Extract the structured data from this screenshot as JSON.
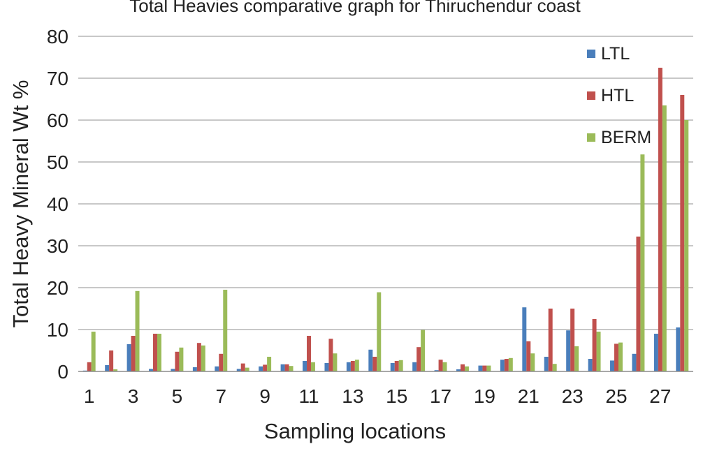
{
  "chart_data": {
    "type": "bar",
    "title": "Total Heavies  comparative graph for Thiruchendur coast",
    "xlabel": "Sampling locations",
    "ylabel": "Total Heavy Mineral Wt %",
    "ylim": [
      0,
      80
    ],
    "yticks": [
      "0",
      "10",
      "20",
      "30",
      "40",
      "50",
      "60",
      "70",
      "80"
    ],
    "categories": [
      "1",
      "2",
      "3",
      "4",
      "5",
      "6",
      "7",
      "8",
      "9",
      "10",
      "11",
      "12",
      "13",
      "14",
      "15",
      "16",
      "17",
      "18",
      "19",
      "20",
      "21",
      "22",
      "23",
      "24",
      "25",
      "26",
      "27",
      "28"
    ],
    "xtick_labels": [
      "1",
      "",
      "3",
      "",
      "5",
      "",
      "7",
      "",
      "9",
      "",
      "11",
      "",
      "13",
      "",
      "15",
      "",
      "17",
      "",
      "19",
      "",
      "21",
      "",
      "23",
      "",
      "25",
      "",
      "27",
      ""
    ],
    "grid": "horizontal",
    "legend_position": "top-right",
    "series": [
      {
        "name": "LTL",
        "color": "#4a7ebb",
        "values": [
          0.2,
          1.5,
          6.5,
          0.6,
          0.6,
          1.0,
          1.2,
          0.6,
          1.2,
          1.7,
          2.5,
          2.0,
          2.2,
          5.2,
          2.0,
          2.2,
          0.3,
          0.5,
          1.4,
          2.8,
          15.3,
          3.5,
          9.8,
          3.0,
          2.6,
          4.2,
          9.0,
          10.5
        ]
      },
      {
        "name": "HTL",
        "color": "#c0504d",
        "values": [
          2.2,
          5.0,
          8.5,
          9.0,
          4.7,
          6.8,
          4.2,
          1.9,
          1.6,
          1.7,
          8.5,
          7.8,
          2.5,
          3.5,
          2.5,
          5.8,
          2.8,
          1.7,
          1.4,
          3.0,
          7.2,
          15.0,
          15.0,
          12.5,
          6.6,
          32.2,
          72.5,
          66.0
        ]
      },
      {
        "name": "BERM",
        "color": "#9bbb59",
        "values": [
          9.5,
          0.5,
          19.2,
          9.0,
          5.7,
          6.2,
          19.5,
          0.9,
          3.5,
          1.3,
          2.2,
          4.3,
          2.8,
          18.9,
          2.7,
          9.9,
          2.2,
          1.2,
          1.4,
          3.2,
          4.3,
          1.8,
          6.0,
          9.5,
          6.9,
          51.8,
          63.5,
          60.0
        ]
      }
    ]
  }
}
